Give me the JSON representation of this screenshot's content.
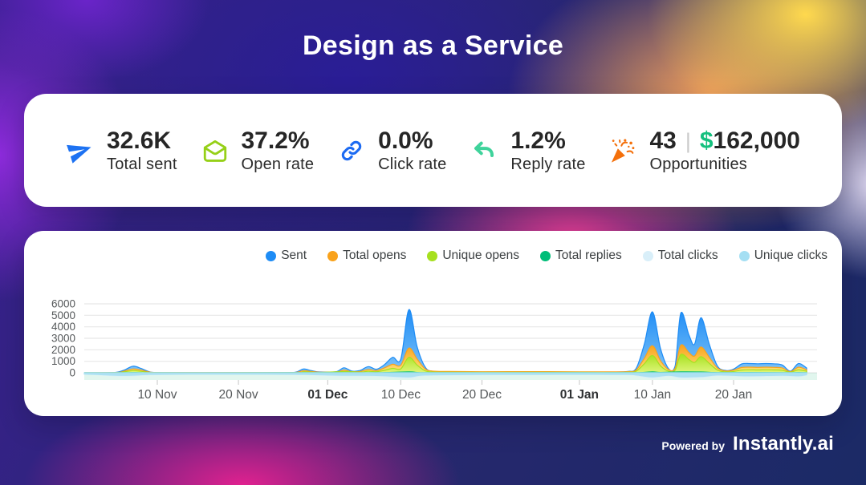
{
  "header": {
    "title": "Design as a Service"
  },
  "stats": [
    {
      "value": "32.6K",
      "label": "Total sent",
      "icon": "paper-plane-icon",
      "icon_color": "#1D72F2"
    },
    {
      "value": "37.2%",
      "label": "Open rate",
      "icon": "envelope-open-icon",
      "icon_color": "#96D018"
    },
    {
      "value": "0.0%",
      "label": "Click rate",
      "icon": "link-icon",
      "icon_color": "#1D6BF2"
    },
    {
      "value": "1.2%",
      "label": "Reply rate",
      "icon": "reply-arrow-icon",
      "icon_color": "#3FD39B"
    },
    {
      "value": "43",
      "separator": "|",
      "currency_symbol": "$",
      "amount": "162,000",
      "label": "Opportunities",
      "icon": "party-popper-icon",
      "icon_color": "#F4700B",
      "currency_color": "#14C07E"
    }
  ],
  "footer": {
    "powered_by": "Powered by",
    "brand": "Instantly.ai"
  },
  "chart_data": {
    "type": "area",
    "x_domain_days": 89,
    "x_start": "01 Nov",
    "x_end": "29 Jan",
    "ylim": [
      0,
      6000
    ],
    "y_ticks": [
      0,
      1000,
      2000,
      3000,
      4000,
      5000,
      6000
    ],
    "grid": true,
    "legend_position": "top-right",
    "x_ticks": [
      {
        "label": "10 Nov",
        "day": 9,
        "bold": false
      },
      {
        "label": "20 Nov",
        "day": 19,
        "bold": false
      },
      {
        "label": "01 Dec",
        "day": 30,
        "bold": true
      },
      {
        "label": "10 Dec",
        "day": 39,
        "bold": false
      },
      {
        "label": "20 Dec",
        "day": 49,
        "bold": false
      },
      {
        "label": "01 Jan",
        "day": 61,
        "bold": true
      },
      {
        "label": "10 Jan",
        "day": 70,
        "bold": false
      },
      {
        "label": "20 Jan",
        "day": 80,
        "bold": false
      }
    ],
    "baseline_band": {
      "color": "#2EBD85",
      "opacity": 0.14
    },
    "series": [
      {
        "name": "Sent",
        "color": "#1E8CF5",
        "color_light": "#7EC3F8",
        "points": [
          [
            0,
            0
          ],
          [
            3,
            10
          ],
          [
            4,
            40
          ],
          [
            5,
            260
          ],
          [
            6,
            570
          ],
          [
            7,
            380
          ],
          [
            8,
            90
          ],
          [
            9,
            20
          ],
          [
            13,
            8
          ],
          [
            19,
            8
          ],
          [
            24,
            10
          ],
          [
            26,
            40
          ],
          [
            27,
            330
          ],
          [
            28,
            180
          ],
          [
            29,
            70
          ],
          [
            31,
            90
          ],
          [
            32,
            430
          ],
          [
            33,
            140
          ],
          [
            34,
            200
          ],
          [
            35,
            540
          ],
          [
            36,
            310
          ],
          [
            37,
            720
          ],
          [
            38,
            1350
          ],
          [
            39,
            1200
          ],
          [
            40,
            5500
          ],
          [
            41,
            2300
          ],
          [
            42,
            500
          ],
          [
            43,
            120
          ],
          [
            45,
            60
          ],
          [
            49,
            55
          ],
          [
            55,
            60
          ],
          [
            61,
            55
          ],
          [
            65,
            55
          ],
          [
            67,
            120
          ],
          [
            68,
            380
          ],
          [
            69,
            2500
          ],
          [
            70,
            5300
          ],
          [
            71,
            2100
          ],
          [
            72,
            350
          ],
          [
            72.8,
            600
          ],
          [
            73.5,
            5200
          ],
          [
            74.5,
            3300
          ],
          [
            75.2,
            2500
          ],
          [
            76,
            4800
          ],
          [
            77,
            2500
          ],
          [
            78,
            600
          ],
          [
            79,
            200
          ],
          [
            80,
            320
          ],
          [
            81,
            770
          ],
          [
            82,
            800
          ],
          [
            83,
            780
          ],
          [
            84,
            800
          ],
          [
            85,
            780
          ],
          [
            86,
            680
          ],
          [
            87,
            140
          ],
          [
            88,
            800
          ],
          [
            89,
            420
          ]
        ]
      },
      {
        "name": "Total opens",
        "color": "#F9A21B",
        "color_light": "#FFE07A",
        "points": [
          [
            0,
            0
          ],
          [
            4,
            25
          ],
          [
            5,
            160
          ],
          [
            6,
            330
          ],
          [
            7,
            230
          ],
          [
            8,
            60
          ],
          [
            9,
            15
          ],
          [
            13,
            20
          ],
          [
            19,
            20
          ],
          [
            24,
            15
          ],
          [
            26,
            30
          ],
          [
            27,
            170
          ],
          [
            28,
            110
          ],
          [
            29,
            50
          ],
          [
            31,
            60
          ],
          [
            32,
            215
          ],
          [
            33,
            90
          ],
          [
            34,
            120
          ],
          [
            35,
            270
          ],
          [
            36,
            185
          ],
          [
            37,
            430
          ],
          [
            38,
            740
          ],
          [
            39,
            660
          ],
          [
            40,
            2150
          ],
          [
            41,
            1200
          ],
          [
            42,
            340
          ],
          [
            43,
            140
          ],
          [
            45,
            110
          ],
          [
            49,
            90
          ],
          [
            55,
            95
          ],
          [
            61,
            85
          ],
          [
            65,
            80
          ],
          [
            67,
            95
          ],
          [
            68,
            240
          ],
          [
            69,
            1250
          ],
          [
            70,
            2350
          ],
          [
            71,
            1050
          ],
          [
            72,
            280
          ],
          [
            72.8,
            400
          ],
          [
            73.5,
            2400
          ],
          [
            74.5,
            1750
          ],
          [
            75.2,
            1450
          ],
          [
            76,
            2250
          ],
          [
            77,
            1350
          ],
          [
            78,
            420
          ],
          [
            79,
            160
          ],
          [
            80,
            230
          ],
          [
            81,
            460
          ],
          [
            82,
            485
          ],
          [
            83,
            465
          ],
          [
            84,
            485
          ],
          [
            85,
            465
          ],
          [
            86,
            410
          ],
          [
            87,
            100
          ],
          [
            88,
            480
          ],
          [
            89,
            255
          ]
        ]
      },
      {
        "name": "Unique opens",
        "color": "#A6E01F",
        "color_light": "#DFF578",
        "points": [
          [
            0,
            0
          ],
          [
            4,
            12
          ],
          [
            5,
            90
          ],
          [
            6,
            185
          ],
          [
            7,
            125
          ],
          [
            8,
            30
          ],
          [
            9,
            6
          ],
          [
            19,
            5
          ],
          [
            26,
            12
          ],
          [
            27,
            85
          ],
          [
            28,
            55
          ],
          [
            29,
            22
          ],
          [
            32,
            105
          ],
          [
            34,
            55
          ],
          [
            35,
            135
          ],
          [
            36,
            90
          ],
          [
            37,
            215
          ],
          [
            38,
            385
          ],
          [
            39,
            340
          ],
          [
            40,
            1350
          ],
          [
            41,
            680
          ],
          [
            42,
            170
          ],
          [
            43,
            65
          ],
          [
            45,
            45
          ],
          [
            49,
            35
          ],
          [
            55,
            38
          ],
          [
            61,
            32
          ],
          [
            65,
            30
          ],
          [
            67,
            42
          ],
          [
            68,
            130
          ],
          [
            69,
            780
          ],
          [
            70,
            1500
          ],
          [
            71,
            600
          ],
          [
            72,
            140
          ],
          [
            72.8,
            220
          ],
          [
            73.5,
            1600
          ],
          [
            74.5,
            1150
          ],
          [
            75.2,
            900
          ],
          [
            76,
            1400
          ],
          [
            77,
            820
          ],
          [
            78,
            240
          ],
          [
            79,
            80
          ],
          [
            80,
            115
          ],
          [
            81,
            240
          ],
          [
            82,
            255
          ],
          [
            83,
            245
          ],
          [
            84,
            255
          ],
          [
            85,
            245
          ],
          [
            86,
            215
          ],
          [
            87,
            50
          ],
          [
            88,
            250
          ],
          [
            89,
            130
          ]
        ]
      },
      {
        "name": "Total replies",
        "color": "#00BD78",
        "points": [
          [
            0,
            0
          ],
          [
            5,
            10
          ],
          [
            6,
            18
          ],
          [
            7,
            10
          ],
          [
            9,
            3
          ],
          [
            19,
            2
          ],
          [
            27,
            10
          ],
          [
            32,
            10
          ],
          [
            36,
            10
          ],
          [
            40,
            75
          ],
          [
            41,
            30
          ],
          [
            43,
            8
          ],
          [
            55,
            6
          ],
          [
            61,
            5
          ],
          [
            68,
            12
          ],
          [
            70,
            85
          ],
          [
            71,
            30
          ],
          [
            73.5,
            80
          ],
          [
            76,
            70
          ],
          [
            78,
            20
          ],
          [
            82,
            28
          ],
          [
            85,
            24
          ],
          [
            87,
            8
          ],
          [
            88,
            26
          ],
          [
            89,
            12
          ]
        ]
      },
      {
        "name": "Total clicks",
        "color": "#D9EFF9",
        "band": true,
        "points": [
          [
            0,
            2
          ],
          [
            5,
            30
          ],
          [
            8,
            12
          ],
          [
            13,
            4
          ],
          [
            19,
            4
          ],
          [
            26,
            8
          ],
          [
            32,
            26
          ],
          [
            36,
            30
          ],
          [
            40,
            55
          ],
          [
            42,
            22
          ],
          [
            49,
            12
          ],
          [
            55,
            10
          ],
          [
            61,
            8
          ],
          [
            67,
            12
          ],
          [
            68,
            22
          ],
          [
            70,
            55
          ],
          [
            72,
            25
          ],
          [
            73.5,
            55
          ],
          [
            76,
            50
          ],
          [
            78,
            22
          ],
          [
            80,
            28
          ],
          [
            82,
            36
          ],
          [
            86,
            26
          ],
          [
            88,
            36
          ],
          [
            89,
            16
          ]
        ]
      },
      {
        "name": "Unique clicks",
        "color": "#A5DFF3",
        "band": true,
        "points": [
          [
            0,
            1
          ],
          [
            5,
            20
          ],
          [
            8,
            8
          ],
          [
            13,
            3
          ],
          [
            19,
            3
          ],
          [
            26,
            6
          ],
          [
            32,
            18
          ],
          [
            36,
            21
          ],
          [
            40,
            40
          ],
          [
            42,
            15
          ],
          [
            49,
            8
          ],
          [
            55,
            7
          ],
          [
            61,
            6
          ],
          [
            67,
            8
          ],
          [
            68,
            15
          ],
          [
            70,
            40
          ],
          [
            72,
            18
          ],
          [
            73.5,
            40
          ],
          [
            76,
            36
          ],
          [
            78,
            15
          ],
          [
            80,
            20
          ],
          [
            82,
            26
          ],
          [
            86,
            18
          ],
          [
            88,
            26
          ],
          [
            89,
            11
          ]
        ]
      }
    ]
  }
}
